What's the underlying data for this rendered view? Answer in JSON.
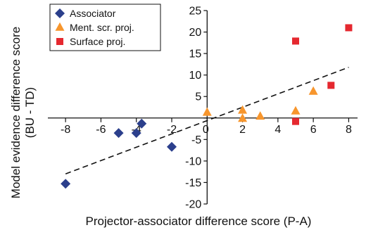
{
  "chart_data": {
    "type": "scatter",
    "title": "",
    "xlabel": "Projector-associator difference score (P-A)",
    "ylabel_line1": "Model evidence difference score",
    "ylabel_line2": "(BU - TD)",
    "xlim": [
      -9,
      8.5
    ],
    "ylim": [
      -20,
      25
    ],
    "x_ticks": [
      -8,
      -6,
      -4,
      -2,
      0,
      2,
      4,
      6,
      8
    ],
    "y_ticks": [
      -20,
      -15,
      -10,
      -5,
      0,
      5,
      10,
      15,
      20,
      25
    ],
    "grid": false,
    "legend_position": "top-left",
    "series": [
      {
        "name": "Associator",
        "marker": "diamond",
        "color": "#2b3f8c",
        "x": [
          -8,
          -5,
          -4,
          -3.7,
          -2
        ],
        "y": [
          -15.3,
          -3.5,
          -3.5,
          -1.3,
          -6.7
        ]
      },
      {
        "name": "Ment. scr. proj.",
        "marker": "triangle",
        "color": "#f7962d",
        "x": [
          0,
          2,
          2,
          3,
          5,
          6
        ],
        "y": [
          1.3,
          1.8,
          -0.1,
          0.4,
          1.6,
          6.2
        ]
      },
      {
        "name": "Surface proj.",
        "marker": "square",
        "color": "#e5282f",
        "x": [
          5,
          5,
          7,
          8
        ],
        "y": [
          17.9,
          -0.8,
          7.6,
          21
        ]
      }
    ],
    "trendline": {
      "style": "dashed",
      "color": "#111111",
      "x": [
        -8,
        8
      ],
      "y": [
        -13,
        11.8
      ]
    }
  }
}
